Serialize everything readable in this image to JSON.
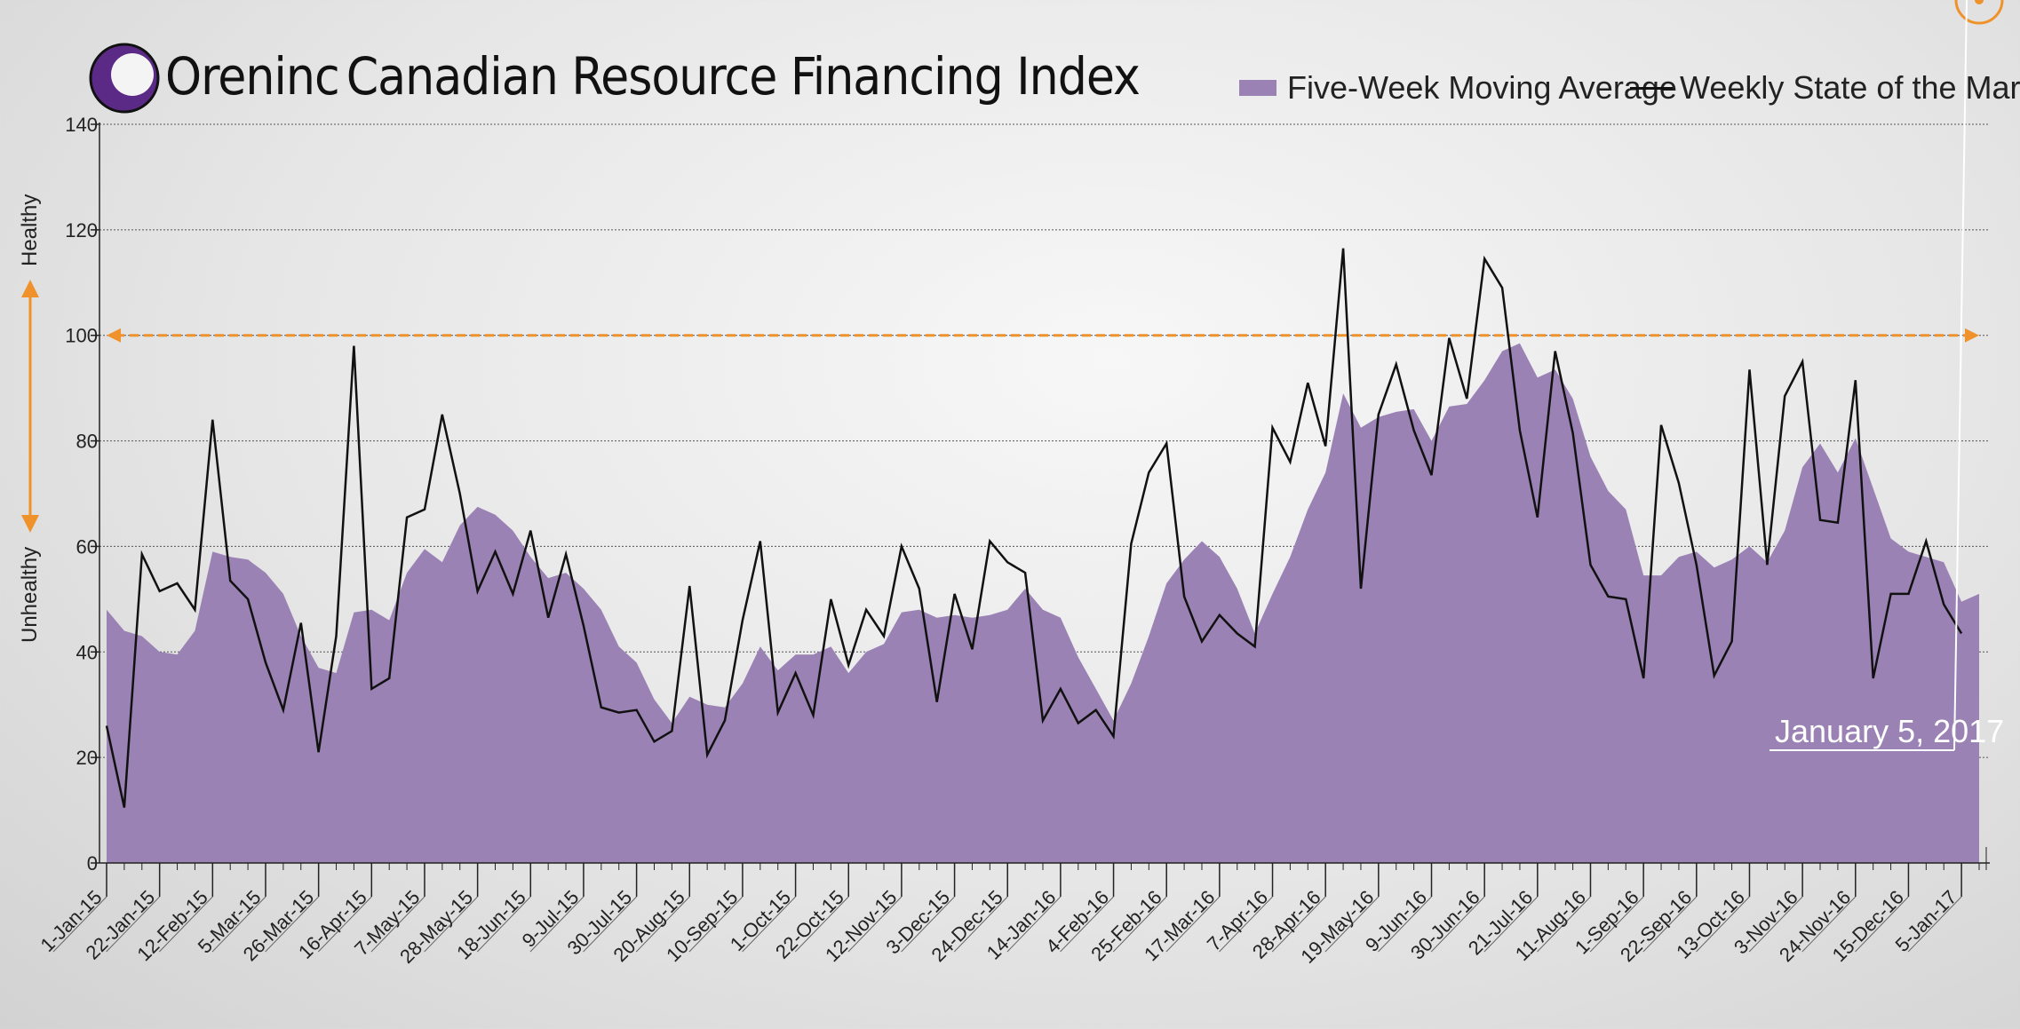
{
  "header": {
    "brand": "Oreninc",
    "title": "Canadian Resource Financing Index"
  },
  "legend": {
    "area_label": "Five-Week Moving Average",
    "line_label": "Weekly State of the Market"
  },
  "side_labels": {
    "top": "Healthy",
    "bottom": "Unhealthy"
  },
  "annotation": {
    "label": "January 5, 2017"
  },
  "colors": {
    "area": "#9b82b4",
    "line": "#111111",
    "threshold": "#f0922b",
    "logo": "#5b2a86"
  },
  "chart_data": {
    "type": "area",
    "title": "Canadian Resource Financing Index",
    "ylim": [
      0,
      140
    ],
    "yticks": [
      0,
      20,
      40,
      60,
      80,
      100,
      120,
      140
    ],
    "threshold": 100,
    "x_tick_labels": [
      "1-Jan-15",
      "22-Jan-15",
      "12-Feb-15",
      "5-Mar-15",
      "26-Mar-15",
      "16-Apr-15",
      "7-May-15",
      "28-May-15",
      "18-Jun-15",
      "9-Jul-15",
      "30-Jul-15",
      "20-Aug-15",
      "10-Sep-15",
      "1-Oct-15",
      "22-Oct-15",
      "12-Nov-15",
      "3-Dec-15",
      "24-Dec-15",
      "14-Jan-16",
      "4-Feb-16",
      "25-Feb-16",
      "17-Mar-16",
      "7-Apr-16",
      "28-Apr-16",
      "19-May-16",
      "9-Jun-16",
      "30-Jun-16",
      "21-Jul-16",
      "11-Aug-16",
      "1-Sep-16",
      "22-Sep-16",
      "13-Oct-16",
      "3-Nov-16",
      "24-Nov-16",
      "15-Dec-16",
      "5-Jan-17"
    ],
    "series": [
      {
        "name": "Five-Week Moving Average",
        "values": [
          48,
          44,
          43,
          40,
          39.5,
          44,
          59,
          58,
          57.5,
          55,
          51,
          43,
          37,
          36,
          47.5,
          48,
          46,
          55,
          59.5,
          57,
          64,
          67.5,
          66,
          63,
          58,
          54,
          55,
          52,
          48,
          41,
          38,
          31,
          26.5,
          31.5,
          30,
          29.5,
          34,
          41,
          36.5,
          39.5,
          39.5,
          41,
          36,
          40,
          41.5,
          47.5,
          48,
          46.5,
          47,
          46.5,
          47,
          48,
          52,
          48,
          46.5,
          39,
          33,
          27,
          34,
          43,
          53,
          57.5,
          61,
          58,
          52,
          43.5,
          51,
          58,
          67,
          74,
          89,
          82.5,
          84.5,
          85.5,
          86,
          80,
          86.5,
          87,
          91.5,
          97,
          98.5,
          92,
          93.5,
          88,
          77,
          70.5,
          67,
          54.5,
          54.5,
          58,
          59,
          56,
          57.5,
          60,
          57,
          63,
          75,
          79.5,
          74,
          80.5,
          71,
          61.5,
          59,
          58,
          57,
          49.5,
          51
        ]
      },
      {
        "name": "Weekly State of the Market",
        "values": [
          26,
          10.5,
          58.5,
          51.5,
          53,
          48,
          84,
          53.5,
          50,
          38,
          29,
          45.5,
          21,
          43,
          98,
          33,
          35,
          65.5,
          67,
          85,
          70,
          51.5,
          59,
          51,
          63,
          46.5,
          58.5,
          45,
          29.5,
          28.5,
          29,
          23,
          25,
          52.5,
          20.5,
          27,
          46,
          61,
          28.5,
          36,
          28,
          50,
          37.5,
          48,
          43,
          60,
          52,
          30.5,
          51,
          40.5,
          61,
          57,
          55,
          27,
          33,
          26.5,
          29,
          24,
          60.5,
          74,
          79.5,
          50.5,
          42,
          47,
          43.5,
          41,
          82.5,
          76,
          91,
          79,
          116.5,
          52,
          85,
          94.5,
          82,
          73.5,
          99.5,
          88,
          114.5,
          109,
          82,
          65.5,
          97,
          81.5,
          56.5,
          50.5,
          50,
          35,
          83,
          72,
          56.5,
          35.5,
          42,
          93.5,
          56.5,
          88.5,
          95,
          65,
          64.5,
          91.5,
          35,
          51,
          51,
          61,
          49,
          43.5
        ]
      }
    ]
  }
}
